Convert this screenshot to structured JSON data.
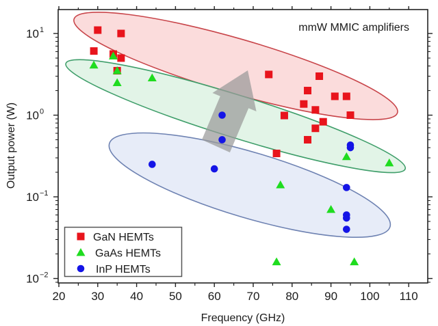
{
  "chart_data": {
    "type": "scatter",
    "title": "",
    "annotation": "mmW MMIC amplifiers",
    "xlabel": "Frequency (GHz)",
    "ylabel": "Output power (W)",
    "xlim": [
      20,
      115
    ],
    "ylim": [
      0.0088,
      19.5
    ],
    "xscale": "linear",
    "yscale": "log",
    "grid": false,
    "legend_position": "bottom-left",
    "x_ticks": [
      20,
      30,
      40,
      50,
      60,
      70,
      80,
      90,
      100,
      110
    ],
    "x_tick_labels": [
      "20",
      "30",
      "40",
      "50",
      "60",
      "70",
      "80",
      "90",
      "100",
      "110"
    ],
    "y_ticks": [
      {
        "value": 10,
        "base": "10",
        "exp": "1"
      },
      {
        "value": 1,
        "base": "10",
        "exp": "0"
      },
      {
        "value": 0.1,
        "base": "10",
        "exp": "−1"
      },
      {
        "value": 0.01,
        "base": "10",
        "exp": "−2"
      }
    ],
    "series": [
      {
        "name": "GaN HEMTs",
        "marker": "square",
        "color": "#e8141c",
        "points": [
          [
            30,
            11.0
          ],
          [
            36,
            10.0
          ],
          [
            29,
            6.1
          ],
          [
            34,
            5.6
          ],
          [
            36,
            5.0
          ],
          [
            35,
            3.5
          ],
          [
            74,
            3.15
          ],
          [
            87,
            3.0
          ],
          [
            84,
            2.0
          ],
          [
            91,
            1.7
          ],
          [
            94,
            1.7
          ],
          [
            83,
            1.37
          ],
          [
            86,
            1.16
          ],
          [
            78,
            0.99
          ],
          [
            95,
            1.0
          ],
          [
            88,
            0.83
          ],
          [
            86,
            0.69
          ],
          [
            84,
            0.5
          ],
          [
            76,
            0.34
          ]
        ]
      },
      {
        "name": "GaAs HEMTs",
        "marker": "triangle",
        "color": "#1fdc1f",
        "points": [
          [
            29,
            4.1
          ],
          [
            34,
            5.3
          ],
          [
            35,
            3.5
          ],
          [
            35,
            2.5
          ],
          [
            44,
            2.86
          ],
          [
            94,
            0.31
          ],
          [
            105,
            0.26
          ],
          [
            77,
            0.14
          ],
          [
            90,
            0.07
          ],
          [
            76,
            0.016
          ],
          [
            96,
            0.016
          ]
        ]
      },
      {
        "name": "InP HEMTs",
        "marker": "circle",
        "color": "#1414e6",
        "points": [
          [
            62,
            1.0
          ],
          [
            62,
            0.5
          ],
          [
            44,
            0.25
          ],
          [
            60,
            0.22
          ],
          [
            95,
            0.43
          ],
          [
            95,
            0.4
          ],
          [
            94,
            0.13
          ],
          [
            94,
            0.06
          ],
          [
            94,
            0.055
          ],
          [
            94,
            0.04
          ]
        ]
      }
    ],
    "regions": [
      {
        "name": "GaN region",
        "fill": "#f9d0d0",
        "stroke": "#c8454a",
        "from": [
          23.9,
          15.0
        ],
        "to": [
          107.1,
          1.07
        ]
      },
      {
        "name": "GaAs region",
        "fill": "#d8f0df",
        "stroke": "#3f9e6a",
        "from": [
          21.8,
          4.3
        ],
        "to": [
          109.1,
          0.22
        ]
      },
      {
        "name": "InP region",
        "fill": "#dfe6f6",
        "stroke": "#6e82b2",
        "from": [
          33.0,
          0.45
        ],
        "to": [
          105.2,
          0.043
        ]
      }
    ],
    "trend_arrow": {
      "color": "#9a9a9a",
      "tip": [
        68.6,
        3.53
      ],
      "tail_left": [
        56.8,
        0.5
      ],
      "tail_right": [
        64.0,
        0.35
      ]
    }
  }
}
